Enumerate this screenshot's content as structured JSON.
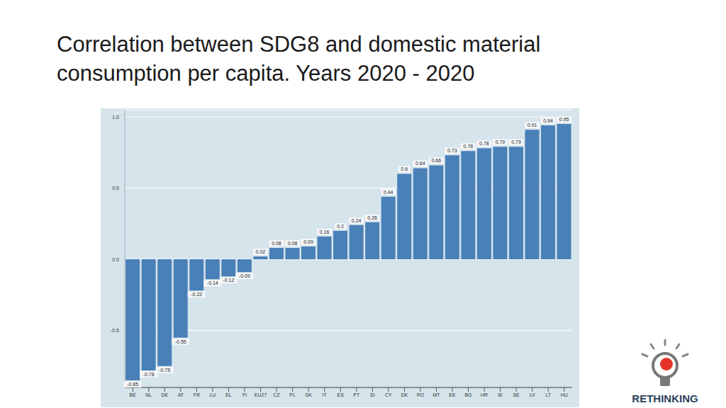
{
  "chart_data": {
    "type": "bar",
    "title": "Correlation between SDG8 and domestic material consumption per capita. Years 2020 - 2020",
    "categories": [
      "BE",
      "NL",
      "DE",
      "AT",
      "FR",
      "LU",
      "EL",
      "FI",
      "EU27",
      "CZ",
      "PL",
      "SK",
      "IT",
      "ES",
      "PT",
      "SI",
      "CY",
      "DK",
      "RO",
      "MT",
      "EE",
      "BG",
      "HR",
      "IE",
      "SE",
      "LV",
      "LT",
      "HU"
    ],
    "values": [
      -0.85,
      -0.78,
      -0.75,
      -0.55,
      -0.22,
      -0.14,
      -0.12,
      -0.09,
      0.02,
      0.08,
      0.08,
      0.09,
      0.16,
      0.2,
      0.24,
      0.26,
      0.44,
      0.6,
      0.64,
      0.66,
      0.73,
      0.76,
      0.78,
      0.79,
      0.79,
      0.91,
      0.94,
      0.95
    ],
    "color": "#4a80b8",
    "ylim": [
      -0.9,
      1.05
    ],
    "yticks": [
      {
        "value": -0.5,
        "label": "-0.5"
      },
      {
        "value": 0,
        "label": "0.0"
      },
      {
        "value": 0.5,
        "label": "0.5"
      },
      {
        "value": 1,
        "label": "1.0"
      }
    ],
    "grid": true,
    "data_labels": true
  },
  "logo": "RETHINKING"
}
